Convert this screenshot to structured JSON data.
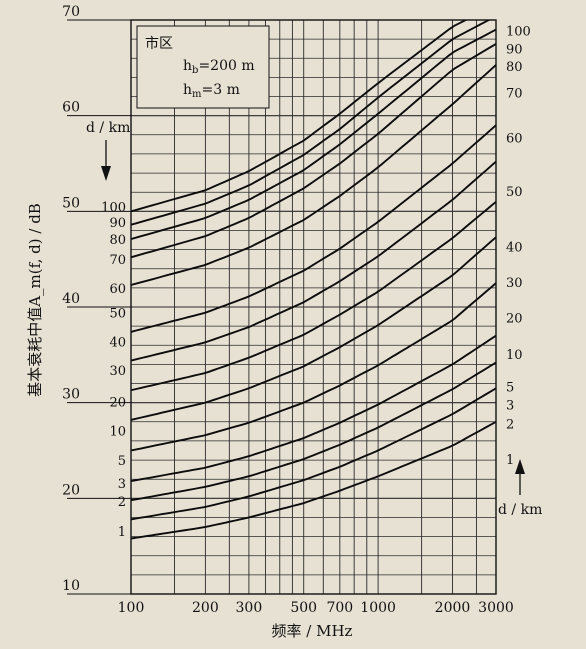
{
  "chart_data": {
    "type": "line",
    "xscale": "log",
    "xlim": [
      100,
      3000
    ],
    "ylim": [
      10,
      70
    ],
    "xlabel": "频率 / MHz",
    "ylabel": "基本衰耗中值A_m(f, d) / dB",
    "x_tick_labels": [
      "100",
      "200",
      "300",
      "500",
      "700",
      "1000",
      "2000",
      "3000"
    ],
    "x_ticks": [
      100,
      200,
      300,
      500,
      700,
      1000,
      2000,
      3000
    ],
    "y_ticks": [
      10,
      20,
      30,
      40,
      50,
      60,
      70
    ],
    "y_tick_labels": [
      "10",
      "20",
      "30",
      "40",
      "50",
      "60",
      "70"
    ],
    "grid": true,
    "annotation": {
      "area": "市区",
      "hb": "200 m",
      "hm": "3 m"
    },
    "left_param_label": "d / km",
    "right_param_label": "d / km",
    "series": [
      {
        "name": "1",
        "x": [
          100,
          200,
          300,
          500,
          700,
          1000,
          2000,
          3000
        ],
        "y": [
          15.8,
          17.0,
          18.0,
          19.5,
          20.8,
          22.3,
          25.5,
          28.0
        ]
      },
      {
        "name": "2",
        "x": [
          100,
          200,
          300,
          500,
          700,
          1000,
          2000,
          3000
        ],
        "y": [
          17.8,
          19.1,
          20.2,
          21.9,
          23.3,
          25.0,
          28.8,
          31.5
        ]
      },
      {
        "name": "3",
        "x": [
          100,
          200,
          300,
          500,
          700,
          1000,
          2000,
          3000
        ],
        "y": [
          19.8,
          21.2,
          22.3,
          24.1,
          25.6,
          27.4,
          31.4,
          34.2
        ]
      },
      {
        "name": "5",
        "x": [
          100,
          200,
          300,
          500,
          700,
          1000,
          2000,
          3000
        ],
        "y": [
          21.8,
          23.2,
          24.4,
          26.3,
          27.9,
          29.8,
          34.0,
          37.0
        ]
      },
      {
        "name": "10",
        "x": [
          100,
          200,
          300,
          500,
          700,
          1000,
          2000,
          3000
        ],
        "y": [
          25.0,
          26.6,
          27.9,
          30.0,
          31.8,
          33.9,
          38.6,
          42.5
        ]
      },
      {
        "name": "20",
        "x": [
          100,
          200,
          300,
          500,
          700,
          1000,
          2000,
          3000
        ],
        "y": [
          28.2,
          30.0,
          31.5,
          33.8,
          35.8,
          38.1,
          43.3,
          47.3
        ]
      },
      {
        "name": "30",
        "x": [
          100,
          200,
          300,
          500,
          700,
          1000,
          2000,
          3000
        ],
        "y": [
          31.3,
          33.1,
          34.7,
          37.1,
          39.2,
          41.6,
          47.2,
          51.0
        ]
      },
      {
        "name": "40",
        "x": [
          100,
          200,
          300,
          500,
          700,
          1000,
          2000,
          3000
        ],
        "y": [
          34.4,
          36.3,
          37.9,
          40.5,
          42.7,
          45.3,
          51.2,
          55.2
        ]
      },
      {
        "name": "50",
        "x": [
          100,
          200,
          300,
          500,
          700,
          1000,
          2000,
          3000
        ],
        "y": [
          37.4,
          39.4,
          41.1,
          43.8,
          46.1,
          48.9,
          55.0,
          59.0
        ]
      },
      {
        "name": "60",
        "x": [
          100,
          200,
          300,
          500,
          700,
          1000,
          2000,
          3000
        ],
        "y": [
          42.3,
          44.4,
          46.2,
          49.1,
          51.6,
          54.6,
          61.2,
          65.3
        ]
      },
      {
        "name": "70",
        "x": [
          100,
          200,
          300,
          500,
          700,
          1000,
          2000,
          3000
        ],
        "y": [
          45.2,
          47.4,
          49.3,
          52.4,
          55.0,
          58.1,
          64.8,
          67.5
        ]
      },
      {
        "name": "80",
        "x": [
          100,
          200,
          300,
          500,
          700,
          1000,
          2000,
          3000
        ],
        "y": [
          47.1,
          49.3,
          51.2,
          54.3,
          57.0,
          60.2,
          66.6,
          69.0
        ]
      },
      {
        "name": "90",
        "x": [
          100,
          200,
          300,
          500,
          700,
          1000,
          2000,
          3000
        ],
        "y": [
          48.6,
          50.8,
          52.7,
          55.9,
          58.6,
          61.9,
          68.0,
          70.4
        ]
      },
      {
        "name": "100",
        "x": [
          100,
          200,
          300,
          500,
          700,
          1000,
          2000,
          3000
        ],
        "y": [
          50.0,
          52.2,
          54.2,
          57.4,
          60.2,
          63.4,
          69.3,
          71.6
        ]
      }
    ],
    "left_labels": [
      {
        "text": "100",
        "y": 50.4
      },
      {
        "text": "90",
        "y": 48.8
      },
      {
        "text": "80",
        "y": 47.0
      },
      {
        "text": "70",
        "y": 44.9
      },
      {
        "text": "60",
        "y": 41.9
      },
      {
        "text": "50",
        "y": 39.3
      },
      {
        "text": "40",
        "y": 36.3
      },
      {
        "text": "30",
        "y": 33.3
      },
      {
        "text": "20",
        "y": 30.0
      },
      {
        "text": "10",
        "y": 27.0
      },
      {
        "text": "5",
        "y": 23.9
      },
      {
        "text": "3",
        "y": 21.5
      },
      {
        "text": "2",
        "y": 19.6
      },
      {
        "text": "1",
        "y": 16.5
      }
    ],
    "right_labels": [
      {
        "text": "100",
        "y": 68.9
      },
      {
        "text": "90",
        "y": 67.0
      },
      {
        "text": "80",
        "y": 65.2
      },
      {
        "text": "70",
        "y": 62.4
      },
      {
        "text": "60",
        "y": 57.7
      },
      {
        "text": "50",
        "y": 52.1
      },
      {
        "text": "40",
        "y": 46.3
      },
      {
        "text": "30",
        "y": 42.6
      },
      {
        "text": "20",
        "y": 38.9
      },
      {
        "text": "10",
        "y": 35.1
      },
      {
        "text": "5",
        "y": 31.7
      },
      {
        "text": "3",
        "y": 29.8
      },
      {
        "text": "2",
        "y": 27.8
      },
      {
        "text": "1",
        "y": 24.1
      }
    ]
  }
}
